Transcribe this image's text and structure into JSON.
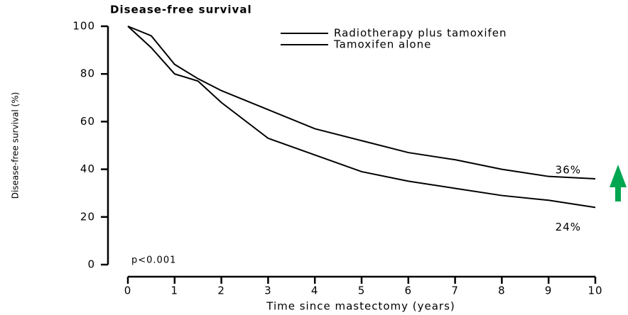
{
  "chart_data": {
    "type": "line",
    "title": "Disease-free survival",
    "y_label": "Disease-free survival (%)",
    "x_label": "Time since mastectomy (years)",
    "x": [
      0,
      0.5,
      1,
      1.5,
      2,
      3,
      4,
      5,
      6,
      7,
      8,
      9,
      10
    ],
    "series": [
      {
        "name": "Radiotherapy plus tamoxifen",
        "color": "#000000",
        "values": [
          100,
          96,
          84,
          78,
          73,
          65,
          57,
          52,
          47,
          44,
          40,
          37,
          36
        ],
        "value_labels": [
          null,
          null,
          null,
          null,
          null,
          null,
          null,
          null,
          null,
          null,
          null,
          null,
          "36%"
        ]
      },
      {
        "name": "Tamoxifen alone",
        "color": "#000000",
        "values": [
          100,
          91,
          80,
          77,
          68,
          53,
          46,
          39,
          35,
          32,
          29,
          27,
          24
        ],
        "value_labels": [
          null,
          null,
          null,
          null,
          null,
          null,
          null,
          null,
          null,
          null,
          null,
          null,
          "24%"
        ]
      }
    ],
    "annotation": "p<0.001",
    "xlim": [
      0,
      10
    ],
    "xticks": [
      0,
      1,
      2,
      3,
      4,
      5,
      6,
      7,
      8,
      9,
      10
    ],
    "ylim": [
      0,
      100
    ],
    "yticks": [
      0,
      20,
      40,
      60,
      80,
      100
    ],
    "grid": false,
    "legend": "top-right"
  }
}
